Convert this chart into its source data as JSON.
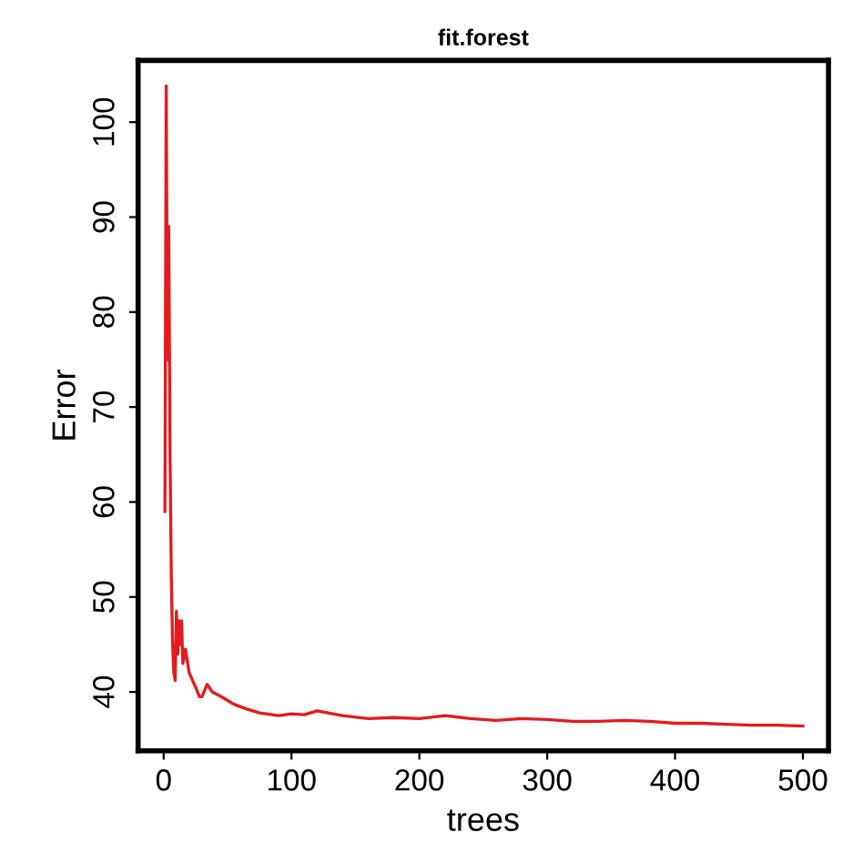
{
  "chart_data": {
    "type": "line",
    "title": "fit.forest",
    "xlabel": "trees",
    "ylabel": "Error",
    "x": [
      1,
      2,
      3,
      4,
      5,
      6,
      7,
      8,
      9,
      10,
      11,
      12,
      13,
      14,
      15,
      17,
      20,
      25,
      28,
      30,
      34,
      38,
      45,
      55,
      65,
      75,
      90,
      100,
      110,
      120,
      140,
      160,
      180,
      200,
      220,
      240,
      260,
      280,
      300,
      320,
      340,
      360,
      380,
      400,
      420,
      440,
      460,
      480,
      500
    ],
    "series": [
      {
        "color": "#e41a1c",
        "values": [
          59,
          103.8,
          75,
          89,
          65,
          52,
          45,
          42,
          41.2,
          48.5,
          44,
          47.5,
          45,
          47.5,
          43,
          44.5,
          42,
          40.5,
          39.5,
          39.5,
          40.8,
          40,
          39.5,
          38.7,
          38.2,
          37.8,
          37.5,
          37.7,
          37.6,
          38.0,
          37.5,
          37.2,
          37.3,
          37.2,
          37.5,
          37.2,
          37.0,
          37.2,
          37.1,
          36.9,
          36.9,
          37.0,
          36.9,
          36.7,
          36.7,
          36.6,
          36.5,
          36.5,
          36.4
        ]
      }
    ],
    "xlim": [
      -20,
      520
    ],
    "ylim": [
      33.8,
      106.5
    ],
    "xticks": [
      0,
      100,
      200,
      300,
      400,
      500
    ],
    "yticks": [
      40,
      50,
      60,
      70,
      80,
      90,
      100
    ],
    "grid": false,
    "legend": false,
    "marker": "none",
    "line_style": "solid"
  }
}
